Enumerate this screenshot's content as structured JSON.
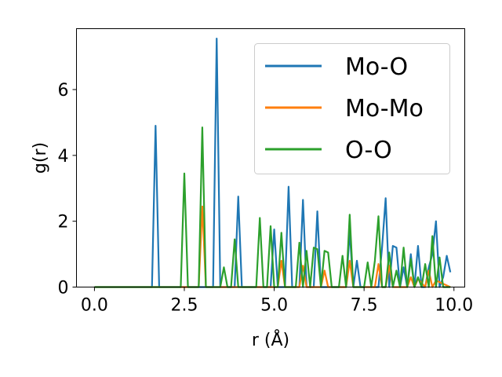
{
  "chart_data": {
    "type": "line",
    "title": "",
    "xlabel": "r (Å)",
    "ylabel": "g(r)",
    "xlim": [
      -0.5,
      10.3
    ],
    "ylim": [
      0,
      7.85
    ],
    "xticks": [
      0.0,
      2.5,
      5.0,
      7.5,
      10.0
    ],
    "xtick_labels": [
      "0.0",
      "2.5",
      "5.0",
      "7.5",
      "10.0"
    ],
    "yticks": [
      0,
      2,
      4,
      6
    ],
    "ytick_labels": [
      "0",
      "2",
      "4",
      "6"
    ],
    "grid": false,
    "legend_position": "upper right",
    "series": [
      {
        "name": "Mo-O",
        "color": "#1f77b4",
        "x": [
          0.0,
          1.6,
          1.7,
          1.8,
          2.0,
          3.3,
          3.4,
          3.5,
          3.9,
          4.0,
          4.1,
          4.9,
          5.0,
          5.1,
          5.3,
          5.4,
          5.5,
          5.7,
          5.8,
          5.9,
          6.1,
          6.2,
          6.3,
          7.0,
          7.1,
          7.2,
          7.3,
          7.4,
          7.5,
          7.9,
          8.0,
          8.1,
          8.2,
          8.3,
          8.4,
          8.5,
          8.6,
          8.7,
          8.8,
          8.9,
          9.0,
          9.1,
          9.2,
          9.3,
          9.4,
          9.5,
          9.6,
          9.7,
          9.8,
          9.9
        ],
        "y": [
          0,
          0,
          4.9,
          0,
          0,
          0,
          7.55,
          0,
          0,
          2.75,
          0,
          0,
          1.75,
          0,
          0,
          3.05,
          0,
          0,
          2.65,
          0,
          0,
          2.3,
          0,
          0,
          1.7,
          0,
          0.8,
          0,
          0,
          0,
          1.2,
          2.7,
          0,
          1.25,
          1.2,
          0,
          0.6,
          0,
          1.0,
          0,
          1.25,
          0,
          0,
          0.6,
          1.0,
          2.0,
          0,
          0.3,
          0.95,
          0.45
        ]
      },
      {
        "name": "Mo-Mo",
        "color": "#ff7f0e",
        "x": [
          0.0,
          2.9,
          3.0,
          3.1,
          5.1,
          5.2,
          5.3,
          5.7,
          5.8,
          5.9,
          6.3,
          6.4,
          6.5,
          7.0,
          7.1,
          7.2,
          7.8,
          7.9,
          8.0,
          8.1,
          8.2,
          8.3,
          8.7,
          8.8,
          8.9,
          9.0,
          9.2,
          9.3,
          9.4,
          9.5,
          9.9
        ],
        "y": [
          0,
          0,
          2.45,
          0,
          0,
          0.8,
          0,
          0,
          0.65,
          0,
          0,
          0.5,
          0,
          0,
          0.8,
          0,
          0,
          0.7,
          0,
          0,
          0.65,
          0,
          0,
          0.3,
          0,
          0.25,
          0,
          0.5,
          0,
          0.2,
          0
        ]
      },
      {
        "name": "O-O",
        "color": "#2ca02c",
        "x": [
          0.0,
          2.4,
          2.5,
          2.6,
          2.9,
          3.0,
          3.1,
          3.5,
          3.6,
          3.7,
          3.8,
          3.9,
          4.0,
          4.5,
          4.6,
          4.7,
          4.8,
          4.9,
          5.0,
          5.1,
          5.2,
          5.3,
          5.6,
          5.7,
          5.8,
          5.9,
          6.0,
          6.1,
          6.2,
          6.3,
          6.4,
          6.5,
          6.6,
          6.8,
          6.9,
          7.0,
          7.1,
          7.2,
          7.5,
          7.6,
          7.7,
          7.8,
          7.9,
          8.0,
          8.1,
          8.2,
          8.3,
          8.4,
          8.5,
          8.6,
          8.7,
          8.8,
          8.9,
          9.0,
          9.1,
          9.2,
          9.3,
          9.4,
          9.5,
          9.6,
          9.7,
          9.8,
          9.9
        ],
        "y": [
          0,
          0,
          3.45,
          0,
          0,
          4.85,
          0,
          0,
          0.6,
          0,
          0,
          1.45,
          0,
          0,
          2.1,
          0,
          0,
          1.85,
          0,
          0,
          1.65,
          0,
          0,
          1.35,
          0,
          1.1,
          0,
          1.2,
          1.15,
          0,
          1.1,
          1.05,
          0,
          0,
          0.95,
          0,
          2.2,
          0,
          0,
          0.75,
          0,
          0.8,
          2.15,
          0,
          0,
          1.05,
          0,
          0.5,
          0,
          1.2,
          0,
          0.85,
          0,
          0.3,
          0,
          0.7,
          0,
          1.55,
          0,
          0.9,
          0,
          0,
          0
        ]
      }
    ]
  }
}
